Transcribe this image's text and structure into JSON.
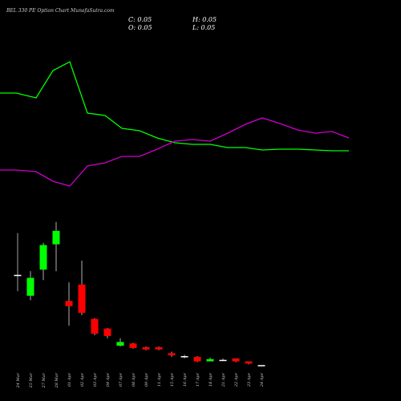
{
  "title": "BEL 330 PE Option Chart MunafaSutra.com",
  "ohlc": {
    "close_label": "C: 0.05",
    "high_label": "H: 0.05",
    "open_label": "O: 0.05",
    "low_label": "L: 0.05"
  },
  "colors": {
    "background": "#000000",
    "up": "#00ff00",
    "down": "#ff0000",
    "neutral": "#ffffff",
    "line_green": "#00ff00",
    "line_magenta": "#cc00cc"
  },
  "chart_data": {
    "type": "candlestick",
    "title": "BEL 330 PE Option Chart MunafaSutra.com",
    "grid": false,
    "categories": [
      "24 Mar",
      "25 Mar",
      "27 Mar",
      "28 Mar",
      "01 Apr",
      "02 Apr",
      "03 Apr",
      "04 Apr",
      "07 Apr",
      "08 Apr",
      "09 Apr",
      "11 Apr",
      "15 Apr",
      "16 Apr",
      "17 Apr",
      "18 Apr",
      "21 Apr",
      "22 Apr",
      "23 Apr",
      "24 Apr"
    ],
    "candles": [
      {
        "date": "24 Mar",
        "open": 10.1,
        "high": 15.7,
        "low": 7.9,
        "close": 10.1,
        "dir": "flat"
      },
      {
        "date": "25 Mar",
        "open": 7.3,
        "high": 10.6,
        "low": 6.7,
        "close": 9.7,
        "dir": "up"
      },
      {
        "date": "27 Mar",
        "open": 10.8,
        "high": 14.4,
        "low": 9.4,
        "close": 14.1,
        "dir": "up"
      },
      {
        "date": "28 Mar",
        "open": 14.2,
        "high": 17.2,
        "low": 10.6,
        "close": 16.0,
        "dir": "up"
      },
      {
        "date": "01 Apr",
        "open": 6.6,
        "high": 9.1,
        "low": 3.3,
        "close": 5.9,
        "dir": "down"
      },
      {
        "date": "02 Apr",
        "open": 8.8,
        "high": 12.0,
        "low": 4.7,
        "close": 5.0,
        "dir": "down"
      },
      {
        "date": "03 Apr",
        "open": 4.2,
        "high": 4.3,
        "low": 2.0,
        "close": 2.2,
        "dir": "down"
      },
      {
        "date": "04 Apr",
        "open": 2.9,
        "high": 3.0,
        "low": 1.6,
        "close": 1.9,
        "dir": "down"
      },
      {
        "date": "07 Apr",
        "open": 0.6,
        "high": 1.6,
        "low": 0.5,
        "close": 1.1,
        "dir": "up"
      },
      {
        "date": "08 Apr",
        "open": 0.9,
        "high": 1.0,
        "low": 0.2,
        "close": 0.3,
        "dir": "down"
      },
      {
        "date": "09 Apr",
        "open": 0.4,
        "high": 0.5,
        "low": 0.0,
        "close": 0.1,
        "dir": "down"
      },
      {
        "date": "11 Apr",
        "open": 0.4,
        "high": 0.5,
        "low": 0.0,
        "close": 0.1,
        "dir": "down"
      },
      {
        "date": "15 Apr",
        "open": -0.4,
        "high": -0.2,
        "low": -0.9,
        "close": -0.7,
        "dir": "down"
      },
      {
        "date": "16 Apr",
        "open": -0.8,
        "high": -0.6,
        "low": -1.1,
        "close": -0.8,
        "dir": "flat"
      },
      {
        "date": "17 Apr",
        "open": -0.9,
        "high": -0.8,
        "low": -1.6,
        "close": -1.5,
        "dir": "down"
      },
      {
        "date": "18 Apr",
        "open": -1.5,
        "high": -1.0,
        "low": -1.5,
        "close": -1.2,
        "dir": "up"
      },
      {
        "date": "21 Apr",
        "open": -1.3,
        "high": -1.1,
        "low": -1.4,
        "close": -1.3,
        "dir": "flat"
      },
      {
        "date": "22 Apr",
        "open": -1.1,
        "high": -1.1,
        "low": -1.6,
        "close": -1.5,
        "dir": "down"
      },
      {
        "date": "23 Apr",
        "open": -1.5,
        "high": -1.5,
        "low": -1.9,
        "close": -1.8,
        "dir": "down"
      },
      {
        "date": "24 Apr",
        "open": -2.0,
        "high": -2.0,
        "low": -2.0,
        "close": -2.0,
        "dir": "flat"
      }
    ],
    "series": [
      {
        "color": "green",
        "x": [
          0,
          20,
          45,
          66,
          87,
          109,
          131,
          152,
          174,
          196,
          218,
          240,
          262,
          284,
          306,
          327,
          349,
          371,
          393,
          414,
          435
        ],
        "values": [
          116,
          116,
          122,
          88,
          77,
          141,
          144,
          160,
          163,
          172,
          178,
          180,
          180,
          184,
          184,
          187,
          186,
          186,
          187,
          188,
          188
        ]
      },
      {
        "color": "magenta",
        "x": [
          0,
          20,
          45,
          66,
          87,
          109,
          131,
          152,
          174,
          196,
          218,
          240,
          262,
          284,
          306,
          327,
          349,
          371,
          393,
          414,
          435
        ],
        "values": [
          212,
          212,
          214,
          226,
          232,
          207,
          203,
          195,
          195,
          186,
          176,
          174,
          176,
          166,
          155,
          147,
          154,
          162,
          166,
          164,
          172
        ]
      }
    ],
    "price_range": [
      -2.3,
      17.6
    ],
    "line_range_px": [
      0,
      500
    ]
  }
}
